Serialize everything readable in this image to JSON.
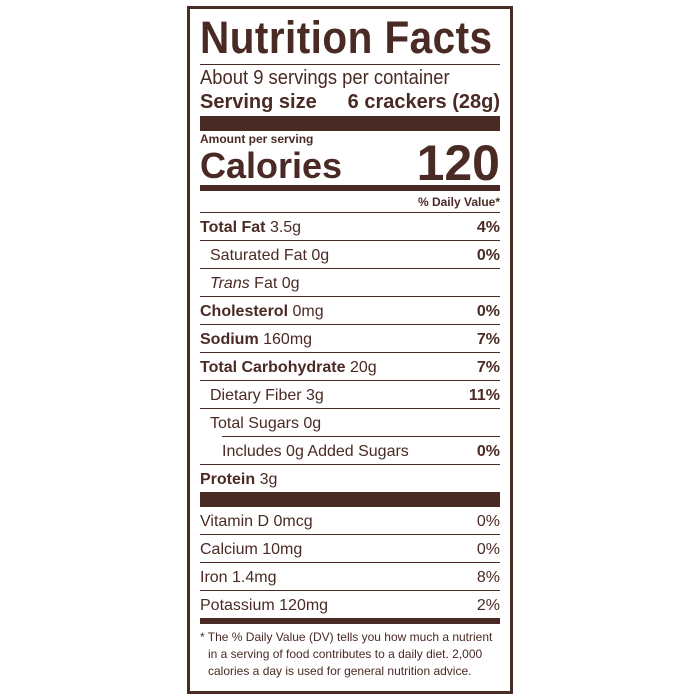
{
  "title": "Nutrition Facts",
  "servings_per_container": "About 9 servings per container",
  "serving_size_label": "Serving size",
  "serving_size_value": "6 crackers (28g)",
  "amount_per_serving": "Amount per serving",
  "calories_label": "Calories",
  "calories_value": "120",
  "daily_value_header": "% Daily Value*",
  "nutrients": [
    {
      "name": "Total Fat",
      "amount": "3.5g",
      "dv": "4%"
    },
    {
      "name": "Saturated Fat",
      "amount": "0g",
      "dv": "0%"
    },
    {
      "name": "Trans",
      "name_rest": "Fat",
      "amount": "0g",
      "dv": ""
    },
    {
      "name": "Cholesterol",
      "amount": "0mg",
      "dv": "0%"
    },
    {
      "name": "Sodium",
      "amount": "160mg",
      "dv": "7%"
    },
    {
      "name": "Total Carbohydrate",
      "amount": "20g",
      "dv": "7%"
    },
    {
      "name": "Dietary Fiber",
      "amount": "3g",
      "dv": "11%"
    },
    {
      "name": "Total Sugars",
      "amount": "0g",
      "dv": ""
    },
    {
      "name": "Includes 0g Added Sugars",
      "amount": "",
      "dv": "0%"
    },
    {
      "name": "Protein",
      "amount": "3g",
      "dv": ""
    }
  ],
  "vitamins": [
    {
      "text": "Vitamin D 0mcg",
      "dv": "0%"
    },
    {
      "text": "Calcium 10mg",
      "dv": "0%"
    },
    {
      "text": "Iron 1.4mg",
      "dv": "8%"
    },
    {
      "text": "Potassium 120mg",
      "dv": "2%"
    }
  ],
  "footnote": "* The % Daily Value (DV) tells you how much a nutrient in a serving of food contributes to a daily diet. 2,000 calories a day is used for general nutrition advice.",
  "colors": {
    "ink": "#4a2a24"
  }
}
